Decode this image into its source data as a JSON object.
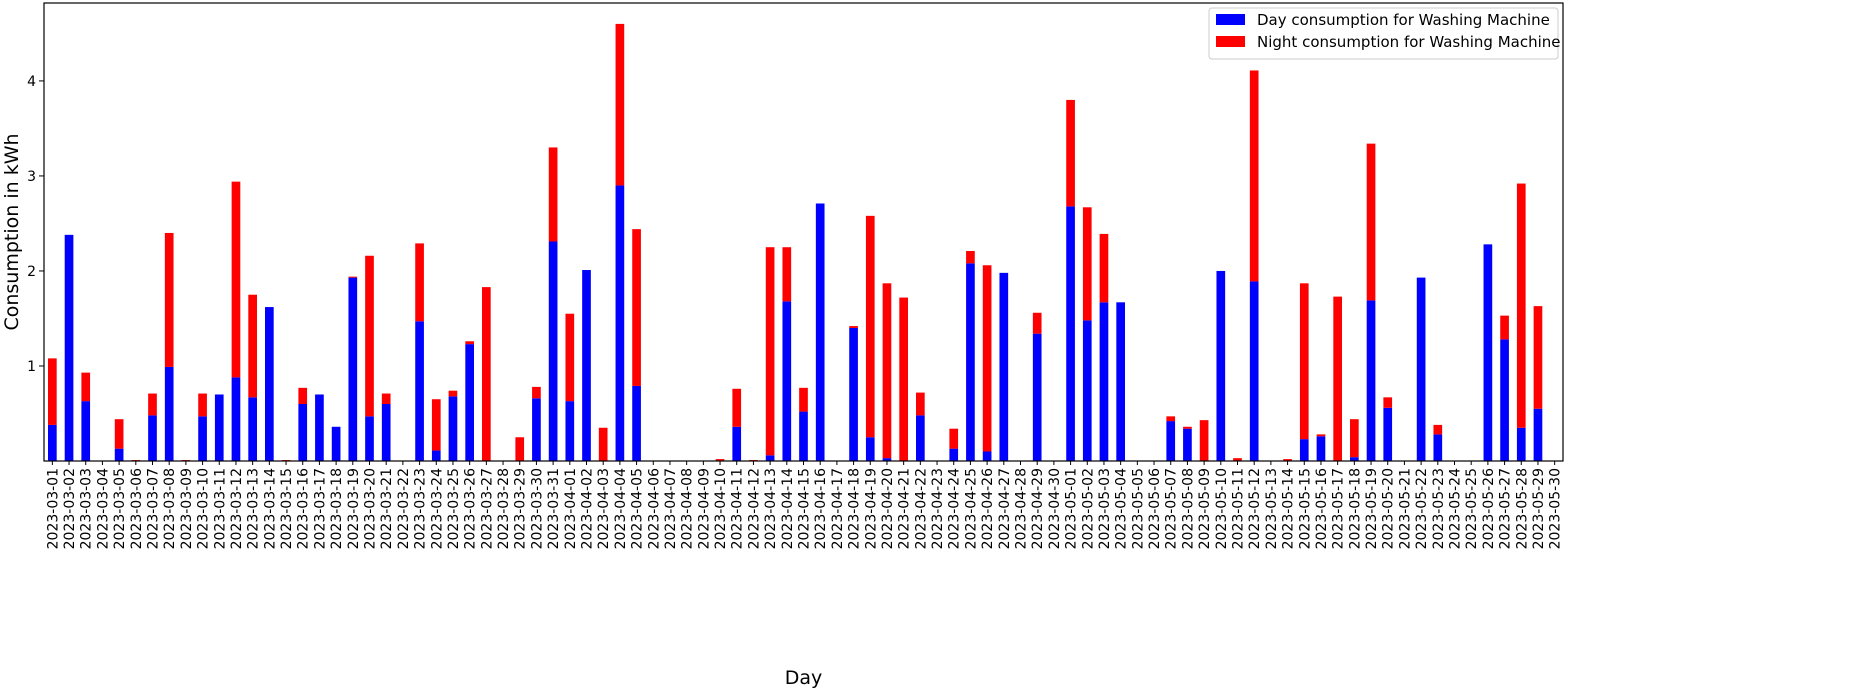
{
  "chart_data": {
    "type": "bar",
    "stacked": true,
    "xlabel": "Day",
    "ylabel": "Consumption in kWh",
    "ylim": [
      0,
      4.82
    ],
    "yticks": [
      1,
      2,
      3,
      4
    ],
    "legend_position": "top-right",
    "categories": [
      "2023-03-01",
      "2023-03-02",
      "2023-03-03",
      "2023-03-04",
      "2023-03-05",
      "2023-03-06",
      "2023-03-07",
      "2023-03-08",
      "2023-03-09",
      "2023-03-10",
      "2023-03-11",
      "2023-03-12",
      "2023-03-13",
      "2023-03-14",
      "2023-03-15",
      "2023-03-16",
      "2023-03-17",
      "2023-03-18",
      "2023-03-19",
      "2023-03-20",
      "2023-03-21",
      "2023-03-22",
      "2023-03-23",
      "2023-03-24",
      "2023-03-25",
      "2023-03-26",
      "2023-03-27",
      "2023-03-28",
      "2023-03-29",
      "2023-03-30",
      "2023-03-31",
      "2023-04-01",
      "2023-04-02",
      "2023-04-03",
      "2023-04-04",
      "2023-04-05",
      "2023-04-06",
      "2023-04-07",
      "2023-04-08",
      "2023-04-09",
      "2023-04-10",
      "2023-04-11",
      "2023-04-12",
      "2023-04-13",
      "2023-04-14",
      "2023-04-15",
      "2023-04-16",
      "2023-04-17",
      "2023-04-18",
      "2023-04-19",
      "2023-04-20",
      "2023-04-21",
      "2023-04-22",
      "2023-04-23",
      "2023-04-24",
      "2023-04-25",
      "2023-04-26",
      "2023-04-27",
      "2023-04-28",
      "2023-04-29",
      "2023-04-30",
      "2023-05-01",
      "2023-05-02",
      "2023-05-03",
      "2023-05-04",
      "2023-05-05",
      "2023-05-06",
      "2023-05-07",
      "2023-05-08",
      "2023-05-09",
      "2023-05-10",
      "2023-05-11",
      "2023-05-12",
      "2023-05-13",
      "2023-05-14",
      "2023-05-15",
      "2023-05-16",
      "2023-05-17",
      "2023-05-18",
      "2023-05-19",
      "2023-05-20",
      "2023-05-21",
      "2023-05-22",
      "2023-05-23",
      "2023-05-24",
      "2023-05-25",
      "2023-05-26",
      "2023-05-27",
      "2023-05-28",
      "2023-05-29",
      "2023-05-30"
    ],
    "series": [
      {
        "name": "Day consumption for Washing Machine",
        "color": "#0000ff",
        "values": [
          0.38,
          2.38,
          0.63,
          0,
          0.13,
          0,
          0.48,
          0.99,
          0,
          0.47,
          0.7,
          0.88,
          0.67,
          1.62,
          0,
          0.6,
          0.7,
          0.36,
          1.93,
          0.47,
          0.6,
          0,
          1.47,
          0.11,
          0.68,
          1.23,
          0,
          0,
          0,
          0.66,
          2.31,
          0.63,
          2.01,
          0,
          2.9,
          0.79,
          0,
          0,
          0,
          0,
          0,
          0.36,
          0,
          0.06,
          1.68,
          0.52,
          2.71,
          0,
          1.4,
          0.25,
          0.03,
          0,
          0.48,
          0,
          0.13,
          2.08,
          0.1,
          1.98,
          0,
          1.34,
          0,
          2.68,
          1.48,
          1.67,
          1.67,
          0,
          0,
          0.42,
          0.34,
          0,
          2.0,
          0,
          1.89,
          0,
          0,
          0.23,
          0.26,
          0,
          0.04,
          1.69,
          0.56,
          0,
          1.93,
          0.28,
          0,
          0,
          2.28,
          1.28,
          0.35,
          0.55,
          0
        ]
      },
      {
        "name": "Night consumption for Washing Machine",
        "color": "#ff0000",
        "values": [
          0.7,
          0,
          0.3,
          0,
          0.31,
          0.01,
          0.23,
          1.41,
          0.01,
          0.24,
          0,
          2.06,
          1.08,
          0,
          0.01,
          0.17,
          0,
          0,
          0.01,
          1.69,
          0.11,
          0,
          0.82,
          0.54,
          0.06,
          0.03,
          1.83,
          0,
          0.25,
          0.12,
          0.99,
          0.92,
          0,
          0.35,
          1.7,
          1.65,
          0,
          0,
          0,
          0,
          0.02,
          0.4,
          0.01,
          2.19,
          0.57,
          0.25,
          0,
          0,
          0.02,
          2.33,
          1.84,
          1.72,
          0.24,
          0,
          0.21,
          0.13,
          1.96,
          0,
          0,
          0.22,
          0,
          1.12,
          1.19,
          0.72,
          0,
          0,
          0,
          0.05,
          0.02,
          0.43,
          0,
          0.03,
          2.22,
          0,
          0.02,
          1.64,
          0.02,
          1.73,
          0.4,
          1.65,
          0.11,
          0,
          0,
          0.1,
          0,
          0,
          0,
          0.25,
          2.57,
          1.08,
          0
        ]
      }
    ]
  }
}
